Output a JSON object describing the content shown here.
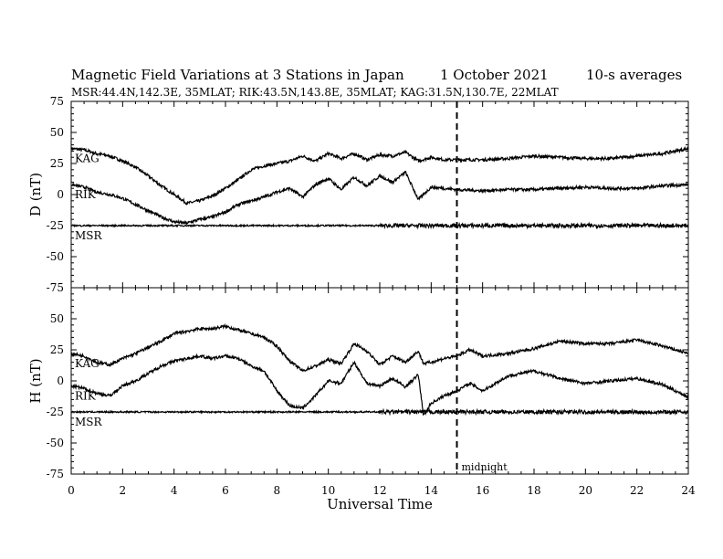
{
  "header": {
    "title": "Magnetic Field Variations at 3 Stations in Japan",
    "date": "1   October 2021",
    "averaging": "10-s averages",
    "stations_line": "MSR:44.4N,142.3E, 35MLAT;  RIK:43.5N,143.8E, 35MLAT;  KAG:31.5N,130.7E, 22MLAT"
  },
  "chart_data": [
    {
      "type": "line",
      "panel": "D",
      "ylabel": "D (nT)",
      "xlabel": "",
      "xlim": [
        0,
        24
      ],
      "ylim": [
        -75,
        75
      ],
      "yticks": [
        75,
        50,
        25,
        0,
        -25,
        -50,
        -75
      ],
      "xticks": [
        0,
        2,
        4,
        6,
        8,
        10,
        12,
        14,
        16,
        18,
        20,
        22,
        24
      ],
      "annotations": [
        {
          "text": "midnight",
          "x": 15,
          "style": "dashed-vertical"
        }
      ],
      "series": [
        {
          "name": "KAG",
          "x": [
            0,
            0.5,
            1,
            1.5,
            2,
            2.5,
            3,
            3.5,
            4,
            4.5,
            5,
            5.5,
            6,
            6.5,
            7,
            7.5,
            8,
            8.5,
            9,
            9.5,
            10,
            10.5,
            11,
            11.5,
            12,
            12.5,
            13,
            13.5,
            14,
            14.5,
            15,
            16,
            17,
            18,
            19,
            20,
            21,
            22,
            23,
            24
          ],
          "values": [
            37,
            36,
            33,
            31,
            27,
            22,
            15,
            7,
            0,
            -7,
            -5,
            -1,
            5,
            12,
            20,
            23,
            25,
            27,
            31,
            27,
            33,
            29,
            33,
            28,
            32,
            31,
            34,
            27,
            30,
            28,
            28,
            28,
            29,
            31,
            30,
            29,
            29,
            31,
            33,
            37
          ]
        },
        {
          "name": "RIK",
          "x": [
            0,
            0.5,
            1,
            1.5,
            2,
            2.5,
            3,
            3.5,
            4,
            4.5,
            5,
            5.5,
            6,
            6.5,
            7,
            7.5,
            8,
            8.5,
            9,
            9.5,
            10,
            10.5,
            11,
            11.5,
            12,
            12.5,
            13,
            13.5,
            14,
            14.5,
            15,
            16,
            17,
            18,
            19,
            20,
            21,
            22,
            23,
            24
          ],
          "values": [
            8,
            6,
            2,
            0,
            -3,
            -8,
            -13,
            -18,
            -22,
            -23,
            -20,
            -18,
            -14,
            -8,
            -5,
            -2,
            2,
            5,
            -2,
            8,
            13,
            4,
            14,
            7,
            15,
            10,
            18,
            -4,
            6,
            5,
            4,
            3,
            4,
            4,
            5,
            6,
            5,
            5,
            7,
            8
          ]
        },
        {
          "name": "MSR",
          "x": [
            0,
            4,
            8,
            12,
            16,
            20,
            24
          ],
          "values": [
            -25,
            -25,
            -25,
            -25,
            -25,
            -25,
            -25
          ]
        }
      ]
    },
    {
      "type": "line",
      "panel": "H",
      "ylabel": "H (nT)",
      "xlabel": "Universal Time",
      "xlim": [
        0,
        24
      ],
      "ylim": [
        -75,
        75
      ],
      "yticks": [
        75,
        50,
        25,
        0,
        -25,
        -50,
        -75
      ],
      "xticks": [
        0,
        2,
        4,
        6,
        8,
        10,
        12,
        14,
        16,
        18,
        20,
        22,
        24
      ],
      "annotations": [
        {
          "text": "midnight",
          "x": 15,
          "style": "dashed-vertical"
        }
      ],
      "series": [
        {
          "name": "KAG",
          "x": [
            0,
            0.5,
            1,
            1.5,
            2,
            2.5,
            3,
            3.5,
            4,
            4.5,
            5,
            5.5,
            6,
            6.5,
            7,
            7.5,
            8,
            8.5,
            9,
            9.5,
            10,
            10.5,
            11,
            11.5,
            12,
            12.5,
            13,
            13.5,
            13.7,
            14,
            14.5,
            15,
            15.5,
            16,
            17,
            18,
            19,
            20,
            21,
            22,
            23,
            24
          ],
          "values": [
            22,
            20,
            15,
            13,
            18,
            22,
            27,
            32,
            38,
            40,
            42,
            42,
            44,
            41,
            38,
            35,
            28,
            16,
            8,
            12,
            17,
            14,
            30,
            24,
            13,
            20,
            15,
            24,
            14,
            15,
            18,
            20,
            25,
            20,
            22,
            26,
            32,
            30,
            30,
            33,
            28,
            22
          ]
        },
        {
          "name": "RIK",
          "x": [
            0,
            0.5,
            1,
            1.5,
            2,
            2.5,
            3,
            3.5,
            4,
            4.5,
            5,
            5.5,
            6,
            6.5,
            7,
            7.5,
            8,
            8.5,
            9,
            9.5,
            10,
            10.5,
            11,
            11.5,
            12,
            12.5,
            13,
            13.5,
            13.7,
            14,
            14.5,
            15,
            15.5,
            16,
            17,
            18,
            19,
            20,
            21,
            22,
            23,
            24
          ],
          "values": [
            -4,
            -6,
            -10,
            -12,
            -4,
            0,
            6,
            12,
            16,
            18,
            20,
            18,
            20,
            18,
            12,
            8,
            -8,
            -20,
            -22,
            -12,
            0,
            -2,
            15,
            -2,
            -4,
            2,
            -5,
            5,
            -28,
            -18,
            -12,
            -8,
            -2,
            -8,
            4,
            8,
            2,
            -2,
            0,
            2,
            -3,
            -13
          ]
        },
        {
          "name": "MSR",
          "x": [
            0,
            4,
            8,
            12,
            16,
            20,
            24
          ],
          "values": [
            -25,
            -25,
            -25,
            -25,
            -25,
            -25,
            -25
          ]
        }
      ]
    }
  ]
}
